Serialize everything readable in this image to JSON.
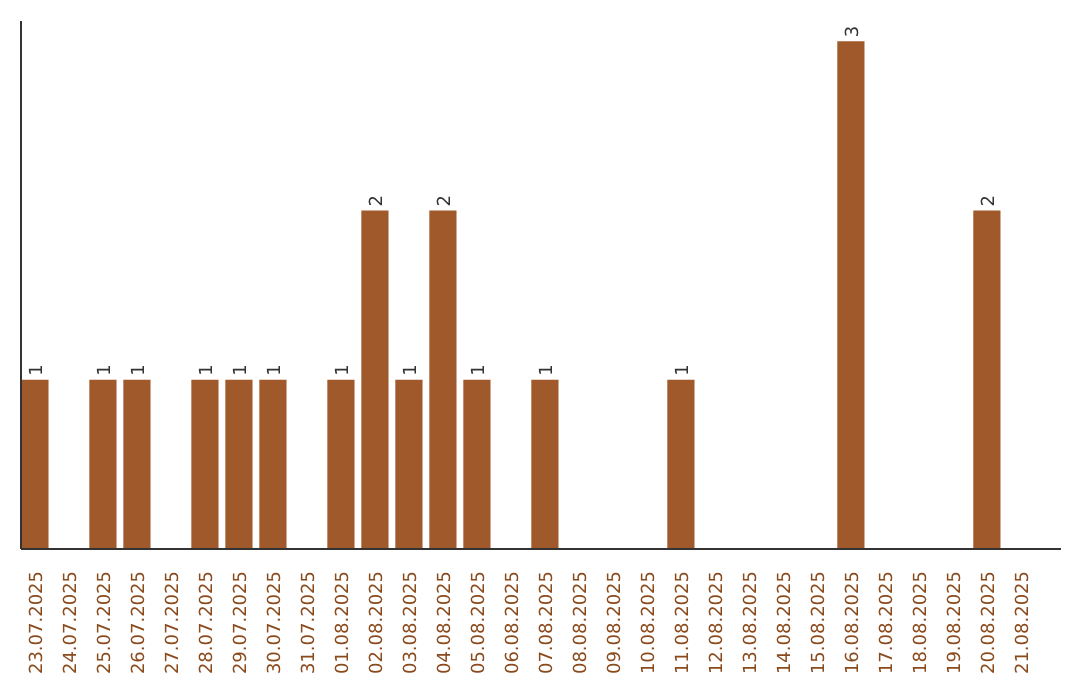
{
  "chart_data": {
    "type": "bar",
    "categories": [
      "23.07.2025",
      "24.07.2025",
      "25.07.2025",
      "26.07.2025",
      "27.07.2025",
      "28.07.2025",
      "29.07.2025",
      "30.07.2025",
      "31.07.2025",
      "01.08.2025",
      "02.08.2025",
      "03.08.2025",
      "04.08.2025",
      "05.08.2025",
      "06.08.2025",
      "07.08.2025",
      "08.08.2025",
      "09.08.2025",
      "10.08.2025",
      "11.08.2025",
      "12.08.2025",
      "13.08.2025",
      "14.08.2025",
      "15.08.2025",
      "16.08.2025",
      "17.08.2025",
      "18.08.2025",
      "19.08.2025",
      "20.08.2025",
      "21.08.2025"
    ],
    "values": [
      1,
      0,
      1,
      1,
      0,
      1,
      1,
      1,
      0,
      1,
      2,
      1,
      2,
      1,
      0,
      1,
      0,
      0,
      0,
      1,
      0,
      0,
      0,
      0,
      3,
      0,
      0,
      0,
      2,
      0
    ],
    "value_labels": [
      "1",
      null,
      "1",
      "1",
      null,
      "1",
      "1",
      "1",
      null,
      "1",
      "2",
      "1",
      "2",
      "1",
      null,
      "1",
      null,
      null,
      null,
      "1",
      null,
      null,
      null,
      null,
      "3",
      null,
      null,
      null,
      "2",
      null
    ],
    "color": "#a0592a",
    "ylim": [
      0,
      3.12
    ],
    "grid": false
  }
}
